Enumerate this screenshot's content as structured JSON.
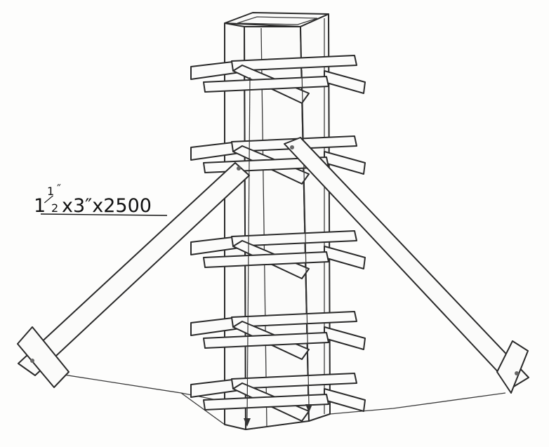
{
  "callout": {
    "whole": "1",
    "numerator": "1",
    "prime": "″",
    "denominator": "2",
    "rest": "x3″x2500"
  },
  "colors": {
    "ink": "#2a2a2a",
    "paper": "#fdfdfc"
  }
}
